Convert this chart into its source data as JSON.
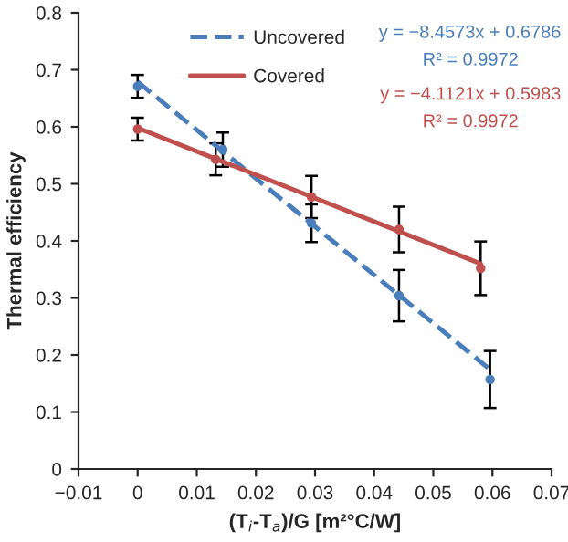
{
  "chart_data": {
    "type": "scatter",
    "xlabel": "(T$_{i}$-T$_{a}$)/G [m²°C/W]",
    "ylabel": "Thermal efficiency",
    "xlim": [
      -0.01,
      0.07
    ],
    "xticks": [
      {
        "value": -0.01,
        "label": "−0.01"
      },
      0,
      0.01,
      0.02,
      0.03,
      0.04,
      0.05,
      0.06,
      0.07
    ],
    "ylim": [
      0,
      0.8
    ],
    "yticks": [
      0,
      0.1,
      0.2,
      0.3,
      0.4,
      0.5,
      0.6,
      0.7,
      0.8
    ],
    "grid": false,
    "legend": "top",
    "marker": "circle",
    "annotations": [
      "y = −8.4573x + 0.6786",
      "R² = 0.9972",
      "y = −4.1121x + 0.5983",
      "R² = 0.9972"
    ],
    "series": [
      {
        "color": "#4a7ebb",
        "x": [
          0,
          0.0144,
          0.0294,
          0.0442,
          0.0596
        ],
        "values": [
          0.671,
          0.56,
          0.431,
          0.304,
          0.157
        ],
        "errors": [
          0.02,
          0.03,
          0.033,
          0.045,
          0.05
        ]
      },
      {
        "color": "#c0504d",
        "x": [
          0,
          0.0132,
          0.0294,
          0.0442,
          0.058
        ],
        "values": [
          0.596,
          0.543,
          0.477,
          0.42,
          0.352
        ],
        "errors": [
          0.02,
          0.028,
          0.037,
          0.04,
          0.047
        ]
      },
      {
        "type": "line",
        "name": "Uncovered",
        "color": "#4a7ebb",
        "line_style": "dashed",
        "marker": "none",
        "x": [
          0,
          0.06
        ],
        "values": [
          0.679,
          0.171
        ]
      },
      {
        "type": "line",
        "name": "Covered",
        "color": "#c0504d",
        "line_style": "solid",
        "marker": "none",
        "x": [
          0,
          0.058
        ],
        "values": [
          0.598,
          0.36
        ]
      }
    ]
  }
}
